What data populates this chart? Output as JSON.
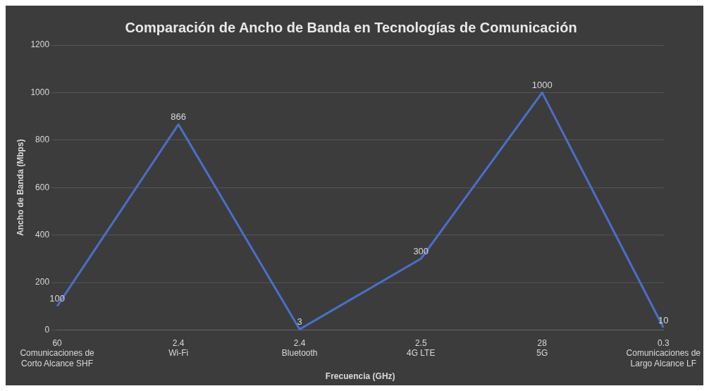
{
  "chart_data": {
    "type": "line",
    "title": "Comparación de Ancho de Banda en Tecnologías de Comunicación",
    "xlabel": "Frecuencia (GHz)",
    "ylabel": "Ancho de Banda (Mbps)",
    "categories": [
      "60\nComunicaciones de Corto Alcance SHF",
      "2.4\nWi-Fi",
      "2.4\nBluetooth",
      "2.5\n4G LTE",
      "28\n5G",
      "0.3\nComunicaciones de Largo Alcance LF"
    ],
    "values": [
      100,
      866,
      3,
      300,
      1000,
      10
    ],
    "color": "#4a6fc9",
    "ylim": [
      0,
      1200
    ],
    "yticks": [
      0,
      200,
      400,
      600,
      800,
      1000,
      1200
    ],
    "grid": "y",
    "data_labels": true,
    "marker": "none",
    "line_style": "solid"
  }
}
